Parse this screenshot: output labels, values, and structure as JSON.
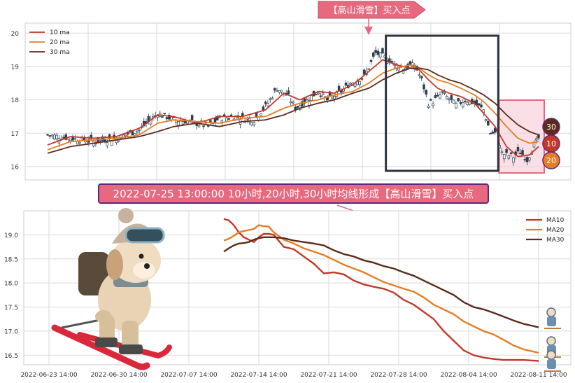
{
  "annotations": {
    "top_callout": "【高山滑雪】买入点",
    "banner": "2022-07-25 13:00:00 10小时,20小时,30小时均线形成【高山滑雪】买入点",
    "badge_30": "30",
    "badge_10": "10",
    "badge_20": "20"
  },
  "colors": {
    "ma10": "#c0392b",
    "ma20": "#e67e22",
    "ma30": "#5b2c1a",
    "candle_up": "#ffffff",
    "candle_down": "#2c3e50",
    "box": "#2d3440",
    "zone_fill": "#f9d2dc",
    "zone_stroke": "#e8697f",
    "banner_fill": "#e8697f",
    "banner_stroke": "#5d2a7a",
    "grid": "#d9d9d9"
  },
  "chart_data": [
    {
      "type": "candlestick",
      "title": "",
      "xlabel": "",
      "ylabel": "",
      "ylim": [
        15.6,
        20.3
      ],
      "yticks": [
        16,
        17,
        18,
        19,
        20
      ],
      "grid": true,
      "legend_position": "top-left",
      "n_bars": 181,
      "legend": [
        "10 ma",
        "20 ma",
        "30 ma"
      ],
      "ohlc_anchor_close": [
        [
          0,
          16.95
        ],
        [
          10,
          16.85
        ],
        [
          20,
          16.75
        ],
        [
          30,
          16.85
        ],
        [
          40,
          17.1
        ],
        [
          48,
          17.6
        ],
        [
          55,
          17.4
        ],
        [
          62,
          17.35
        ],
        [
          70,
          17.2
        ],
        [
          75,
          17.45
        ],
        [
          82,
          17.5
        ],
        [
          90,
          17.4
        ],
        [
          96,
          17.9
        ],
        [
          100,
          18.35
        ],
        [
          105,
          18.1
        ],
        [
          108,
          17.75
        ],
        [
          113,
          18.0
        ],
        [
          118,
          18.25
        ],
        [
          122,
          18.0
        ],
        [
          128,
          18.25
        ],
        [
          132,
          18.5
        ],
        [
          138,
          18.7
        ],
        [
          143,
          19.4
        ],
        [
          148,
          19.25
        ],
        [
          152,
          19.05
        ],
        [
          155,
          18.95
        ],
        [
          160,
          19.05
        ],
        [
          163,
          18.6
        ],
        [
          166,
          17.9
        ],
        [
          168,
          17.95
        ],
        [
          172,
          18.2
        ],
        [
          178,
          17.85
        ],
        [
          182,
          18.0
        ],
        [
          186,
          17.9
        ],
        [
          190,
          17.7
        ],
        [
          193,
          17.0
        ],
        [
          196,
          17.0
        ],
        [
          198,
          16.4
        ],
        [
          200,
          16.35
        ],
        [
          203,
          16.3
        ],
        [
          206,
          16.45
        ],
        [
          209,
          16.2
        ],
        [
          212,
          16.65
        ],
        [
          214,
          16.85
        ]
      ],
      "ma10_anchor": [
        [
          0,
          16.65
        ],
        [
          10,
          16.9
        ],
        [
          20,
          16.85
        ],
        [
          30,
          16.9
        ],
        [
          40,
          17.15
        ],
        [
          48,
          17.55
        ],
        [
          55,
          17.5
        ],
        [
          65,
          17.3
        ],
        [
          75,
          17.5
        ],
        [
          85,
          17.5
        ],
        [
          95,
          17.7
        ],
        [
          103,
          18.2
        ],
        [
          110,
          18.0
        ],
        [
          118,
          18.25
        ],
        [
          125,
          18.2
        ],
        [
          133,
          18.45
        ],
        [
          140,
          18.85
        ],
        [
          146,
          19.2
        ],
        [
          152,
          19.05
        ],
        [
          158,
          18.95
        ],
        [
          162,
          18.9
        ],
        [
          166,
          18.6
        ],
        [
          170,
          18.35
        ],
        [
          175,
          18.2
        ],
        [
          180,
          18.1
        ],
        [
          186,
          17.9
        ],
        [
          190,
          17.6
        ],
        [
          195,
          17.2
        ],
        [
          200,
          16.6
        ],
        [
          205,
          16.3
        ],
        [
          210,
          16.35
        ],
        [
          214,
          16.6
        ]
      ],
      "ma20_anchor": [
        [
          0,
          16.5
        ],
        [
          10,
          16.75
        ],
        [
          20,
          16.8
        ],
        [
          30,
          16.85
        ],
        [
          40,
          16.95
        ],
        [
          48,
          17.3
        ],
        [
          55,
          17.4
        ],
        [
          65,
          17.35
        ],
        [
          75,
          17.3
        ],
        [
          85,
          17.45
        ],
        [
          95,
          17.5
        ],
        [
          103,
          17.75
        ],
        [
          110,
          17.9
        ],
        [
          118,
          18.0
        ],
        [
          125,
          18.15
        ],
        [
          133,
          18.25
        ],
        [
          140,
          18.5
        ],
        [
          146,
          18.8
        ],
        [
          152,
          18.95
        ],
        [
          158,
          19.05
        ],
        [
          162,
          18.95
        ],
        [
          166,
          18.75
        ],
        [
          170,
          18.6
        ],
        [
          175,
          18.5
        ],
        [
          180,
          18.35
        ],
        [
          186,
          18.15
        ],
        [
          190,
          17.95
        ],
        [
          195,
          17.6
        ],
        [
          200,
          17.2
        ],
        [
          205,
          16.85
        ],
        [
          210,
          16.7
        ],
        [
          214,
          16.75
        ]
      ],
      "ma30_anchor": [
        [
          0,
          16.4
        ],
        [
          10,
          16.6
        ],
        [
          20,
          16.7
        ],
        [
          30,
          16.8
        ],
        [
          40,
          16.9
        ],
        [
          48,
          17.05
        ],
        [
          55,
          17.2
        ],
        [
          65,
          17.3
        ],
        [
          75,
          17.2
        ],
        [
          85,
          17.35
        ],
        [
          95,
          17.4
        ],
        [
          103,
          17.55
        ],
        [
          110,
          17.75
        ],
        [
          118,
          17.9
        ],
        [
          125,
          18.0
        ],
        [
          133,
          18.2
        ],
        [
          140,
          18.35
        ],
        [
          146,
          18.6
        ],
        [
          152,
          18.8
        ],
        [
          158,
          18.95
        ],
        [
          162,
          18.95
        ],
        [
          166,
          18.9
        ],
        [
          170,
          18.75
        ],
        [
          175,
          18.6
        ],
        [
          180,
          18.5
        ],
        [
          186,
          18.3
        ],
        [
          190,
          18.15
        ],
        [
          195,
          17.9
        ],
        [
          200,
          17.55
        ],
        [
          205,
          17.25
        ],
        [
          210,
          17.05
        ],
        [
          214,
          16.95
        ]
      ],
      "highlight_box_bars": [
        145,
        183
      ],
      "highlight_box_range": [
        15.85,
        19.85
      ],
      "buy_zone_bars": [
        198,
        214
      ],
      "buy_zone_range": [
        15.8,
        19.95
      ]
    },
    {
      "type": "line",
      "title": "",
      "xlabel": "",
      "ylabel": "",
      "ylim": [
        16.3,
        19.5
      ],
      "yticks": [
        16.5,
        17.0,
        17.5,
        18.0,
        18.5,
        19.0
      ],
      "grid": true,
      "legend_position": "top-right",
      "x": [
        "2022-07-11 02:00",
        "2022-07-11 14:00",
        "2022-07-12 02:00",
        "2022-07-12 14:00",
        "2022-07-13 02:00",
        "2022-07-13 14:00",
        "2022-07-14 02:00",
        "2022-07-14 14:00",
        "2022-07-15 02:00",
        "2022-07-15 14:00",
        "2022-07-16 02:00",
        "2022-07-17 02:00",
        "2022-07-18 02:00",
        "2022-07-19 02:00",
        "2022-07-20 02:00",
        "2022-07-21 02:00",
        "2022-07-22 02:00",
        "2022-07-23 02:00",
        "2022-07-24 02:00",
        "2022-07-25 02:00",
        "2022-07-26 02:00",
        "2022-07-27 02:00",
        "2022-07-28 02:00",
        "2022-07-29 02:00",
        "2022-07-30 02:00",
        "2022-07-31 02:00",
        "2022-08-01 02:00",
        "2022-08-02 02:00",
        "2022-08-03 02:00",
        "2022-08-04 02:00",
        "2022-08-05 02:00",
        "2022-08-06 02:00",
        "2022-08-07 02:00",
        "2022-08-08 02:00",
        "2022-08-09 02:00",
        "2022-08-10 02:00",
        "2022-08-11 14:00"
      ],
      "series": [
        {
          "name": "MA10",
          "values": [
            19.33,
            19.3,
            19.2,
            19.05,
            18.95,
            18.9,
            18.85,
            18.95,
            19.02,
            19.02,
            19.0,
            18.75,
            18.7,
            18.55,
            18.4,
            18.2,
            18.22,
            18.18,
            18.05,
            17.97,
            17.92,
            17.88,
            17.8,
            17.65,
            17.55,
            17.4,
            17.25,
            17.0,
            16.8,
            16.6,
            16.5,
            16.45,
            16.42,
            16.4,
            16.4,
            16.4,
            16.38
          ]
        },
        {
          "name": "MA20",
          "values": [
            18.88,
            18.92,
            18.98,
            19.05,
            19.08,
            19.1,
            19.12,
            19.2,
            19.18,
            19.17,
            19.05,
            18.9,
            18.82,
            18.72,
            18.65,
            18.58,
            18.48,
            18.38,
            18.3,
            18.22,
            18.12,
            18.02,
            17.95,
            17.88,
            17.82,
            17.7,
            17.55,
            17.45,
            17.35,
            17.2,
            17.1,
            17.0,
            16.93,
            16.82,
            16.7,
            16.62,
            16.55
          ]
        },
        {
          "name": "MA30",
          "values": [
            18.65,
            18.72,
            18.78,
            18.82,
            18.83,
            18.85,
            18.9,
            18.93,
            18.95,
            18.95,
            18.95,
            18.93,
            18.88,
            18.85,
            18.82,
            18.78,
            18.68,
            18.6,
            18.55,
            18.47,
            18.42,
            18.35,
            18.3,
            18.22,
            18.15,
            18.05,
            17.95,
            17.85,
            17.75,
            17.6,
            17.5,
            17.45,
            17.38,
            17.3,
            17.22,
            17.15,
            17.08
          ]
        }
      ],
      "xticks": [
        "2022-06-23 14:00",
        "2022-06-30 14:00",
        "2022-07-07 14:00",
        "2022-07-14 14:00",
        "2022-07-21 14:00",
        "2022-07-28 14:00",
        "2022-08-04 14:00",
        "2022-08-11 14:00"
      ]
    }
  ]
}
